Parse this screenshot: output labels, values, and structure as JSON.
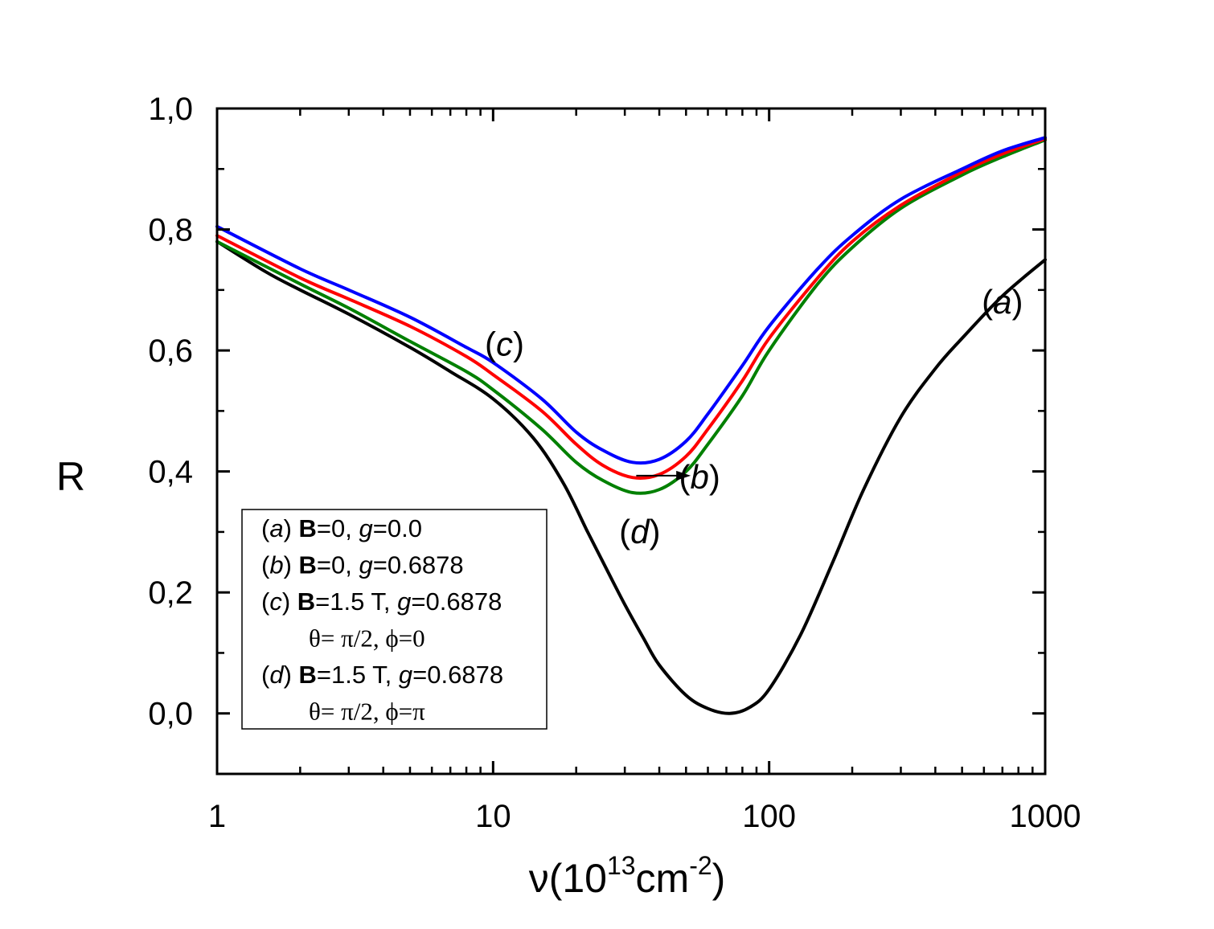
{
  "chart_data": {
    "type": "line",
    "xscale": "log",
    "xlim": [
      1,
      1000
    ],
    "ylim": [
      -0.1,
      1.0
    ],
    "xlabel": {
      "base": "ν(10",
      "sup1": "13",
      "mid": "cm",
      "sup2": "-2",
      "end": ")"
    },
    "ylabel": "R",
    "grid": false,
    "xticks": [
      {
        "value": 1,
        "label": "1"
      },
      {
        "value": 10,
        "label": "10"
      },
      {
        "value": 100,
        "label": "100"
      },
      {
        "value": 1000,
        "label": "1000"
      }
    ],
    "yticks": [
      {
        "value": 0.0,
        "label": "0,0"
      },
      {
        "value": 0.2,
        "label": "0,2"
      },
      {
        "value": 0.4,
        "label": "0,4"
      },
      {
        "value": 0.6,
        "label": "0,6"
      },
      {
        "value": 0.8,
        "label": "0,8"
      },
      {
        "value": 1.0,
        "label": "1,0"
      }
    ],
    "series": [
      {
        "id": "a",
        "color": "#000000",
        "x": [
          1,
          1.5,
          2,
          3,
          5,
          7,
          10,
          14,
          18,
          22,
          26,
          30,
          35,
          40,
          50,
          60,
          72,
          85,
          100,
          130,
          170,
          220,
          300,
          400,
          500,
          700,
          1000
        ],
        "y": [
          0.78,
          0.73,
          0.7,
          0.66,
          0.605,
          0.565,
          0.52,
          0.455,
          0.38,
          0.3,
          0.235,
          0.18,
          0.125,
          0.08,
          0.03,
          0.008,
          0.0,
          0.01,
          0.04,
          0.13,
          0.25,
          0.37,
          0.49,
          0.57,
          0.62,
          0.69,
          0.75
        ]
      },
      {
        "id": "b",
        "color": "#ff0000",
        "x": [
          1,
          2,
          3,
          5,
          8,
          10,
          15,
          20,
          25,
          32,
          40,
          50,
          60,
          80,
          100,
          150,
          200,
          300,
          500,
          700,
          1000
        ],
        "y": [
          0.79,
          0.72,
          0.685,
          0.64,
          0.59,
          0.56,
          0.5,
          0.445,
          0.41,
          0.39,
          0.395,
          0.425,
          0.47,
          0.55,
          0.62,
          0.72,
          0.78,
          0.84,
          0.895,
          0.925,
          0.95
        ]
      },
      {
        "id": "c",
        "color": "#0000ff",
        "x": [
          1,
          2,
          3,
          5,
          8,
          10,
          15,
          20,
          25,
          32,
          40,
          50,
          60,
          80,
          100,
          150,
          200,
          300,
          500,
          700,
          1000
        ],
        "y": [
          0.805,
          0.735,
          0.7,
          0.655,
          0.605,
          0.58,
          0.52,
          0.465,
          0.435,
          0.415,
          0.42,
          0.45,
          0.495,
          0.575,
          0.64,
          0.735,
          0.79,
          0.85,
          0.9,
          0.93,
          0.952
        ]
      },
      {
        "id": "d",
        "color": "#008000",
        "x": [
          1,
          2,
          3,
          5,
          8,
          10,
          15,
          20,
          25,
          32,
          40,
          50,
          60,
          80,
          100,
          150,
          200,
          300,
          500,
          700,
          1000
        ],
        "y": [
          0.78,
          0.71,
          0.67,
          0.615,
          0.565,
          0.535,
          0.47,
          0.415,
          0.385,
          0.365,
          0.37,
          0.4,
          0.445,
          0.525,
          0.6,
          0.71,
          0.77,
          0.835,
          0.89,
          0.92,
          0.948
        ]
      }
    ],
    "annotations": [
      {
        "text": "(a)",
        "x": 700,
        "y": 0.68
      },
      {
        "text": "(c)",
        "x": 11,
        "y": 0.61
      },
      {
        "text": "(d)",
        "x": 34,
        "y": 0.3
      },
      {
        "text": "(b)",
        "x": 56,
        "y": 0.39
      }
    ],
    "arrow": {
      "from": [
        33,
        0.393
      ],
      "to": [
        52,
        0.393
      ]
    },
    "legend": {
      "position": "bottom-left",
      "entries": [
        {
          "id": "a",
          "line1": {
            "tag": "a",
            "field": "B",
            "rest": "=0, ",
            "gsym": "g",
            "gval": "=0.0"
          }
        },
        {
          "id": "b",
          "line1": {
            "tag": "b",
            "field": "B",
            "rest": "=0, ",
            "gsym": "g",
            "gval": "=0.6878"
          }
        },
        {
          "id": "c",
          "line1": {
            "tag": "c",
            "field": "B",
            "rest": "=1.5 T, ",
            "gsym": "g",
            "gval": "=0.6878"
          },
          "line2": "θ= π/2, ϕ=0"
        },
        {
          "id": "d",
          "line1": {
            "tag": "d",
            "field": "B",
            "rest": "=1.5 T, ",
            "gsym": "g",
            "gval": "=0.6878"
          },
          "line2": "θ= π/2, ϕ=π"
        }
      ]
    }
  }
}
